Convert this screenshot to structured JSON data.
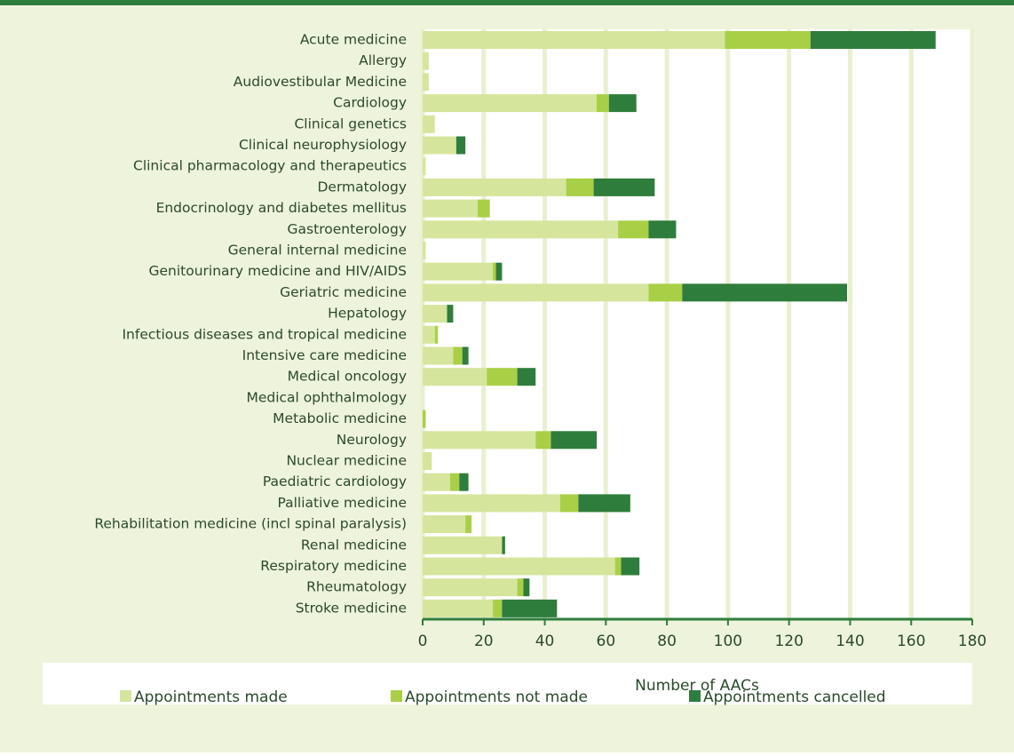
{
  "chart_data": {
    "type": "stacked-bar-horizontal",
    "x_label": "Number of AACs",
    "categories": [
      "Acute medicine",
      "Allergy",
      "Audiovestibular Medicine",
      "Cardiology",
      "Clinical genetics",
      "Clinical neurophysiology",
      "Clinical pharmacology and therapeutics",
      "Dermatology",
      "Endocrinology and diabetes mellitus",
      "Gastroenterology",
      "General internal medicine",
      "Genitourinary medicine and HIV/AIDS",
      "Geriatric medicine",
      "Hepatology",
      "Infectious diseases and tropical medicine",
      "Intensive care medicine",
      "Medical oncology",
      "Medical ophthalmology",
      "Metabolic medicine",
      "Neurology",
      "Nuclear medicine",
      "Paediatric cardiology",
      "Palliative medicine",
      "Rehabilitation medicine (incl spinal paralysis)",
      "Renal medicine",
      "Respiratory medicine",
      "Rheumatology",
      "Stroke medicine"
    ],
    "series": [
      {
        "name": "Appointments made",
        "color": "#d5e59c",
        "values": [
          99,
          2,
          2,
          57,
          4,
          11,
          1,
          47,
          18,
          64,
          1,
          23,
          74,
          8,
          4,
          10,
          21,
          0,
          0,
          37,
          3,
          9,
          45,
          14,
          26,
          63,
          31,
          23
        ]
      },
      {
        "name": "Appointments not made",
        "color": "#a9cf46",
        "values": [
          28,
          0,
          0,
          4,
          0,
          0,
          0,
          9,
          4,
          10,
          0,
          1,
          11,
          0,
          1,
          3,
          10,
          0,
          1,
          5,
          0,
          3,
          6,
          2,
          0,
          2,
          2,
          3
        ]
      },
      {
        "name": "Appointments cancelled",
        "color": "#2e7d3c",
        "values": [
          41,
          0,
          0,
          9,
          0,
          3,
          0,
          20,
          0,
          9,
          0,
          2,
          54,
          2,
          0,
          2,
          6,
          0,
          0,
          15,
          0,
          3,
          17,
          0,
          1,
          6,
          2,
          18
        ]
      }
    ],
    "xlim": [
      0,
      180
    ],
    "xticks": [
      0,
      20,
      40,
      60,
      80,
      100,
      120,
      140,
      160,
      180
    ],
    "grid": true,
    "legend": "bottom"
  }
}
